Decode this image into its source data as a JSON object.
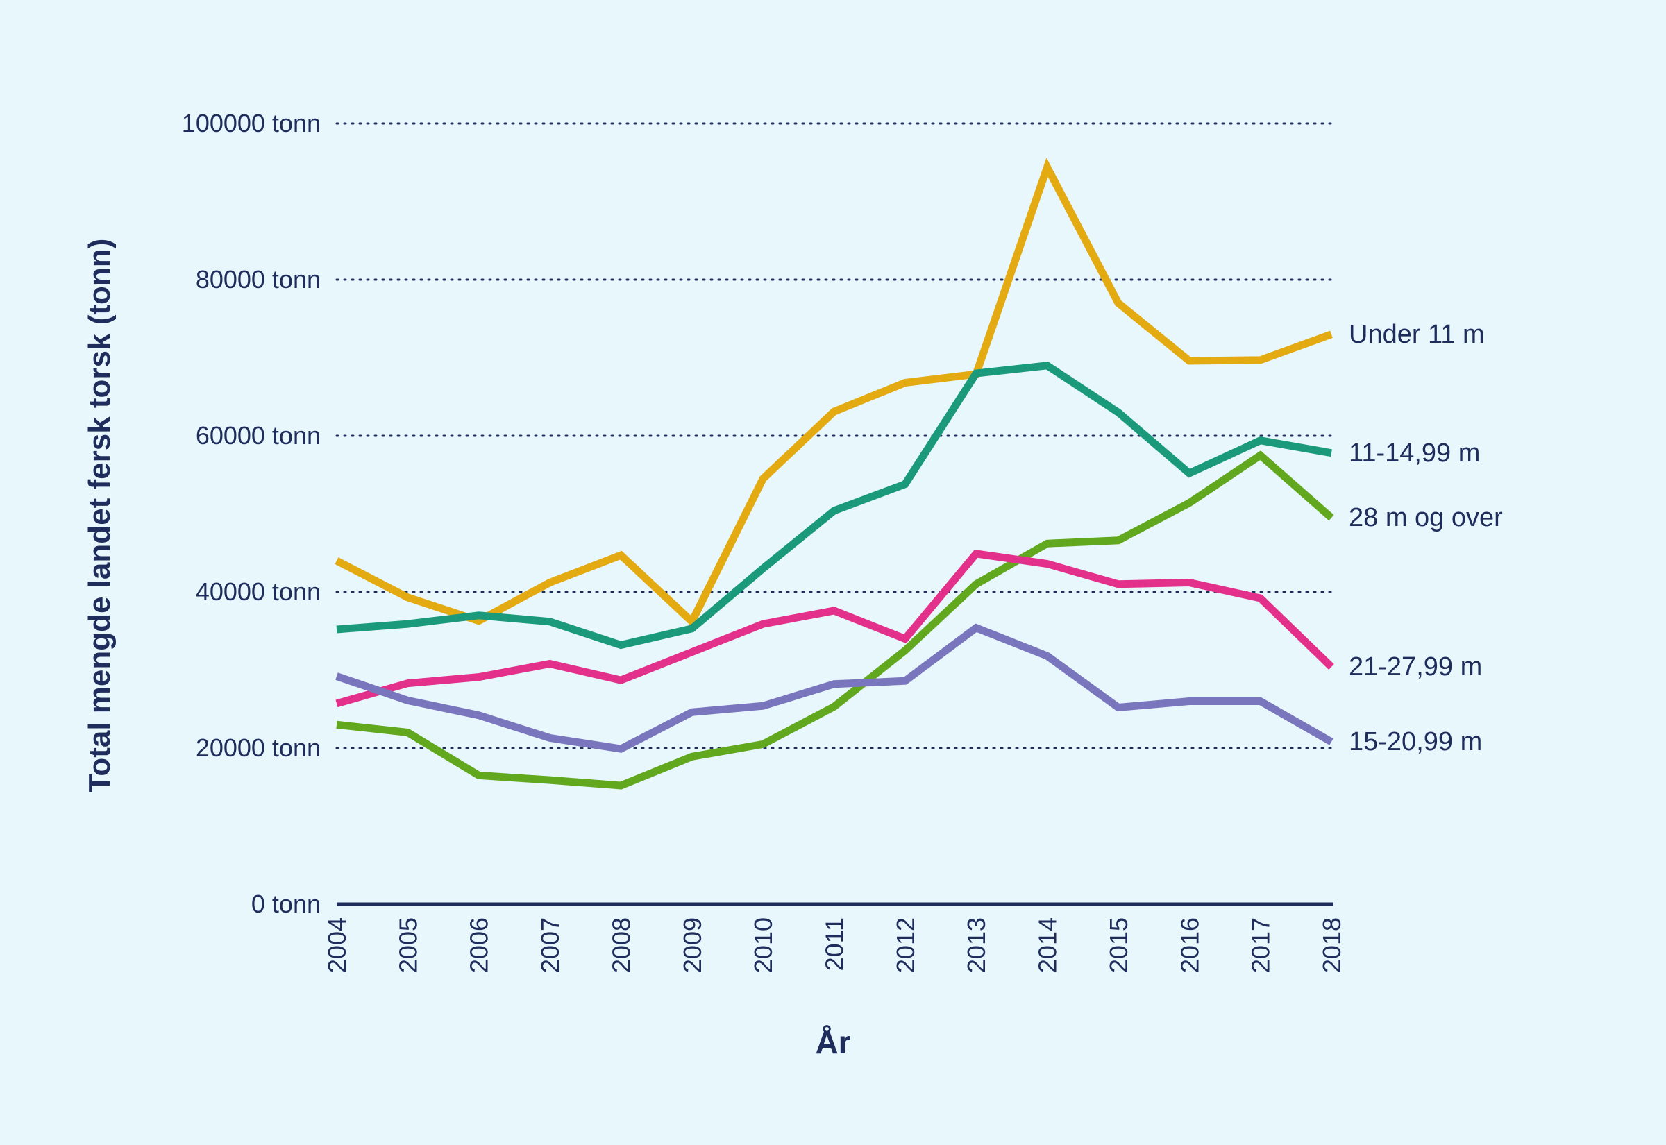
{
  "colors": {
    "background": "#e8f7fc",
    "text": "#1f2d5c",
    "grid": "#1f2d5c",
    "axis": "#1f2d5c"
  },
  "chart_data": {
    "type": "line",
    "title": "",
    "xlabel": "År",
    "ylabel": "Total mengde landet fersk torsk (tonn)",
    "x": [
      "2004",
      "2005",
      "2006",
      "2007",
      "2008",
      "2009",
      "2010",
      "2011",
      "2012",
      "2013",
      "2014",
      "2015",
      "2016",
      "2017",
      "2018"
    ],
    "ylim": [
      0,
      100000
    ],
    "yticks": [
      {
        "value": 0,
        "label": "0 tonn"
      },
      {
        "value": 20000,
        "label": "20000 tonn"
      },
      {
        "value": 40000,
        "label": "40000 tonn"
      },
      {
        "value": 60000,
        "label": "60000 tonn"
      },
      {
        "value": 80000,
        "label": "80000 tonn"
      },
      {
        "value": 100000,
        "label": "100000 tonn"
      }
    ],
    "grid": "horizontal dotted",
    "legend": "direct labels at line ends",
    "series": [
      {
        "name": "Under 11 m",
        "color": "#e3aa12",
        "values": [
          44000,
          39300,
          36300,
          41200,
          44700,
          36200,
          54500,
          63100,
          66800,
          67900,
          94400,
          77000,
          69600,
          69700,
          73000
        ]
      },
      {
        "name": "11-14,99 m",
        "color": "#1a9a7a",
        "values": [
          35200,
          35900,
          37000,
          36200,
          33200,
          35300,
          43000,
          50400,
          53800,
          68000,
          69000,
          63000,
          55200,
          59400,
          57800
        ]
      },
      {
        "name": "28 m og over",
        "color": "#62a81f",
        "values": [
          23000,
          22000,
          16500,
          15900,
          15200,
          18900,
          20500,
          25300,
          32500,
          41000,
          46200,
          46600,
          51400,
          57500,
          49500
        ]
      },
      {
        "name": "21-27,99 m",
        "color": "#e3308a",
        "values": [
          25700,
          28300,
          29100,
          30800,
          28700,
          32300,
          35900,
          37600,
          34000,
          44900,
          43600,
          41000,
          41200,
          39200,
          30400
        ]
      },
      {
        "name": "15-20,99 m",
        "color": "#7a76bd",
        "values": [
          29200,
          26100,
          24200,
          21300,
          19900,
          24600,
          25400,
          28200,
          28600,
          35400,
          31800,
          25200,
          26000,
          26000,
          20800
        ]
      }
    ]
  }
}
